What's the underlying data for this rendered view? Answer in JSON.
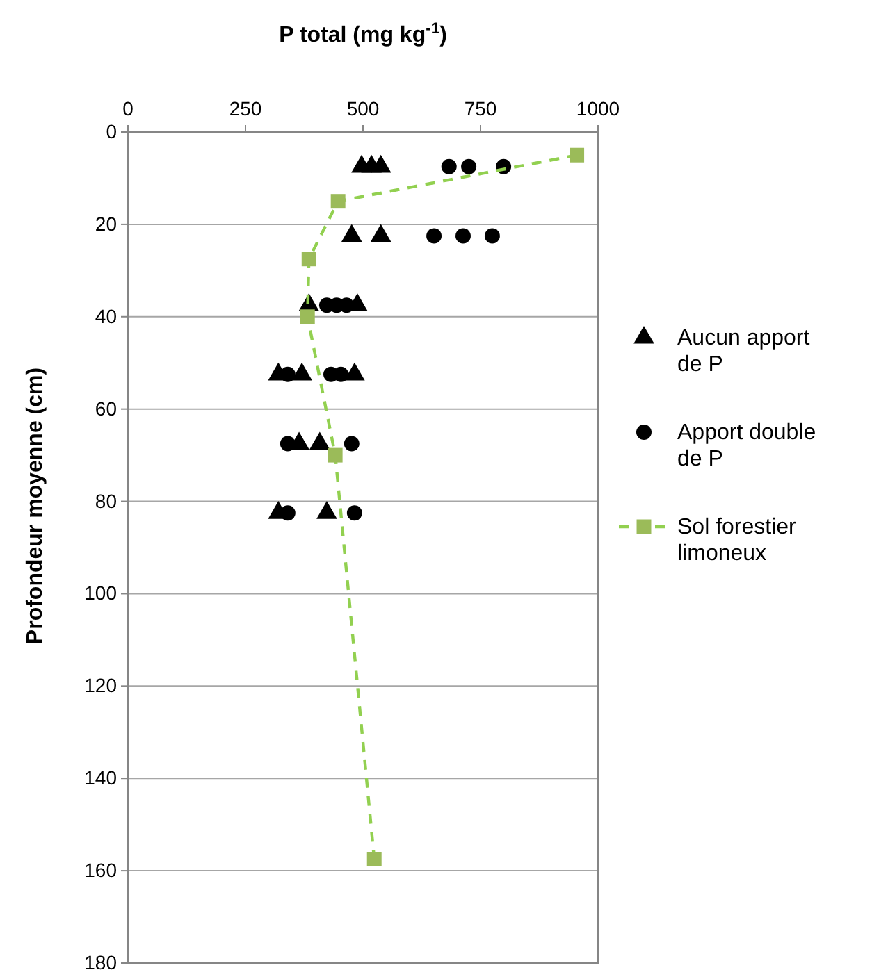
{
  "chart_data": {
    "type": "scatter",
    "xlabel": "P total (mg kg$^{-1}$)",
    "ylabel": "Profondeur moyenne (cm)",
    "xlim": [
      0,
      1000
    ],
    "xticks": [
      0,
      250,
      500,
      750,
      1000
    ],
    "ylim": [
      180,
      0
    ],
    "yticks": [
      0,
      20,
      40,
      60,
      80,
      100,
      120,
      140,
      160,
      180
    ],
    "grid": "y",
    "legend": "right",
    "series": [
      {
        "name": "Aucun apport de P",
        "marker": "triangle",
        "color": "#000000",
        "x": [
          497,
          518,
          538,
          476,
          538,
          385,
          488,
          320,
          370,
          482,
          364,
          408,
          320,
          423
        ],
        "values": [
          7.5,
          7.5,
          7.5,
          22.5,
          22.5,
          37.5,
          37.5,
          52.5,
          52.5,
          52.5,
          67.5,
          67.5,
          82.5,
          82.5
        ]
      },
      {
        "name": "Apport double de P",
        "marker": "circle",
        "color": "#000000",
        "x": [
          683,
          725,
          799,
          651,
          713,
          775,
          423,
          444,
          465,
          340,
          432,
          453,
          340,
          476,
          340,
          482
        ],
        "values": [
          7.5,
          7.5,
          7.5,
          22.5,
          22.5,
          22.5,
          37.5,
          37.5,
          37.5,
          52.5,
          52.5,
          52.5,
          67.5,
          67.5,
          82.5,
          82.5
        ]
      },
      {
        "name": "Sol forestier limoneux",
        "type": "line",
        "marker": "square",
        "line_style": "dashed",
        "color": "#9bbb59",
        "x": [
          955,
          447,
          385,
          382,
          441,
          524
        ],
        "values": [
          5,
          15,
          27.5,
          40,
          70,
          157.5
        ]
      }
    ]
  }
}
